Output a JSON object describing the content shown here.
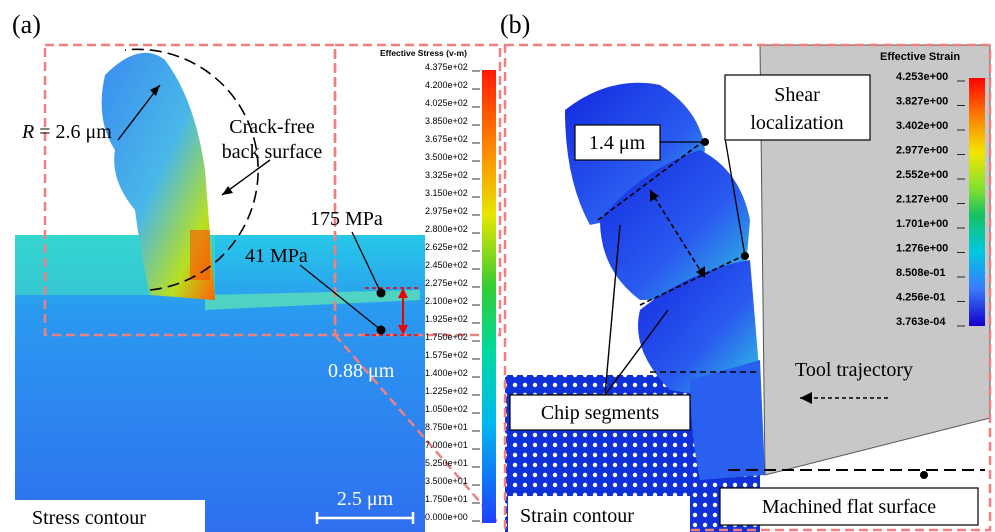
{
  "panel_a": {
    "label": "(a)",
    "annotations": {
      "crack_free_line1": "Crack-free",
      "crack_free_line2": "back surface",
      "radius_symbol": "R",
      "radius_text": " = 2.6 μm",
      "stress_high": "175 MPa",
      "stress_low": "41 MPa",
      "depth": "0.88 μm",
      "scale_bar": "2.5 μm",
      "caption": "Stress contour"
    },
    "colorbar": {
      "title": "Effective Stress (v-m)",
      "labels": [
        "4.375e+02",
        "4.200e+02",
        "4.025e+02",
        "3.850e+02",
        "3.675e+02",
        "3.500e+02",
        "3.325e+02",
        "3.150e+02",
        "2.975e+02",
        "2.800e+02",
        "2.625e+02",
        "2.450e+02",
        "2.275e+02",
        "2.100e+02",
        "1.925e+02",
        "1.750e+02",
        "1.575e+02",
        "1.400e+02",
        "1.225e+02",
        "1.050e+02",
        "8.750e+01",
        "7.000e+01",
        "5.250e+01",
        "3.500e+01",
        "1.750e+01",
        "0.000e+00"
      ]
    }
  },
  "panel_b": {
    "label": "(b)",
    "annotations": {
      "shear_line1": "Shear",
      "shear_line2": "localization",
      "segment_width": "1.4 μm",
      "tool_trajectory": "Tool trajectory",
      "chip_segments": "Chip segments",
      "caption": "Strain contour",
      "machined_surface": "Machined flat surface"
    },
    "colorbar": {
      "title": "Effective Strain",
      "labels": [
        "4.253e+00",
        "3.827e+00",
        "3.402e+00",
        "2.977e+00",
        "2.552e+00",
        "2.127e+00",
        "1.701e+00",
        "1.276e+00",
        "8.508e-01",
        "4.256e-01",
        "3.763e-04"
      ]
    }
  }
}
